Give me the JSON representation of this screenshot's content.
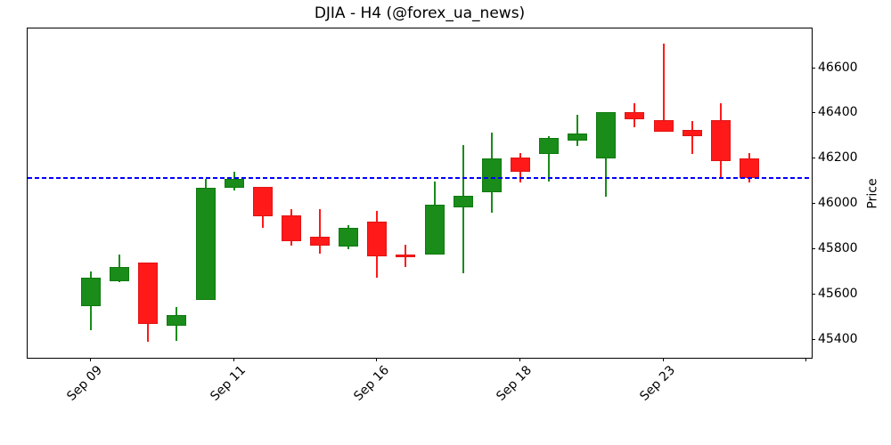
{
  "chart_data": {
    "type": "candlestick",
    "title": "DJIA - H4 (@forex_ua_news)",
    "ylabel": "Price",
    "ylim": [
      45320,
      46775
    ],
    "y_ticks": [
      45400,
      45600,
      45800,
      46000,
      46200,
      46400,
      46600
    ],
    "x_ticks": [
      {
        "pos": 0,
        "label": "Sep 09"
      },
      {
        "pos": 5,
        "label": "Sep 11"
      },
      {
        "pos": 10,
        "label": "Sep 16"
      },
      {
        "pos": 15,
        "label": "Sep 18"
      },
      {
        "pos": 20,
        "label": "Sep 23"
      },
      {
        "pos": 25,
        "label": ""
      }
    ],
    "grid": false,
    "legend": "none",
    "hline": {
      "value": 46115,
      "color": "#0000ff",
      "style": "dashed"
    },
    "colors": {
      "up": "#198c19",
      "up_edge": "#0f7a0f",
      "down": "#ff1919",
      "down_edge": "#e01414",
      "axis": "#000000"
    },
    "candles": [
      {
        "open": 45550,
        "high": 45700,
        "low": 45440,
        "close": 45675
      },
      {
        "open": 45660,
        "high": 45775,
        "low": 45655,
        "close": 45720
      },
      {
        "open": 45740,
        "high": 45740,
        "low": 45390,
        "close": 45470
      },
      {
        "open": 45460,
        "high": 45545,
        "low": 45395,
        "close": 45510
      },
      {
        "open": 45575,
        "high": 46110,
        "low": 45575,
        "close": 46070
      },
      {
        "open": 46070,
        "high": 46140,
        "low": 46060,
        "close": 46110
      },
      {
        "open": 46075,
        "high": 46075,
        "low": 45895,
        "close": 45945
      },
      {
        "open": 45950,
        "high": 45975,
        "low": 45815,
        "close": 45835
      },
      {
        "open": 45855,
        "high": 45975,
        "low": 45780,
        "close": 45815
      },
      {
        "open": 45810,
        "high": 45905,
        "low": 45800,
        "close": 45895
      },
      {
        "open": 45920,
        "high": 45970,
        "low": 45675,
        "close": 45770
      },
      {
        "open": 45775,
        "high": 45820,
        "low": 45720,
        "close": 45765
      },
      {
        "open": 45775,
        "high": 46100,
        "low": 45775,
        "close": 45995
      },
      {
        "open": 45985,
        "high": 46260,
        "low": 45695,
        "close": 46035
      },
      {
        "open": 46050,
        "high": 46315,
        "low": 45960,
        "close": 46200
      },
      {
        "open": 46205,
        "high": 46225,
        "low": 46095,
        "close": 46140
      },
      {
        "open": 46220,
        "high": 46300,
        "low": 46100,
        "close": 46290
      },
      {
        "open": 46280,
        "high": 46395,
        "low": 46255,
        "close": 46310
      },
      {
        "open": 46200,
        "high": 46405,
        "low": 46030,
        "close": 46405
      },
      {
        "open": 46405,
        "high": 46445,
        "low": 46340,
        "close": 46375
      },
      {
        "open": 46370,
        "high": 46710,
        "low": 46320,
        "close": 46320
      },
      {
        "open": 46325,
        "high": 46365,
        "low": 46220,
        "close": 46300
      },
      {
        "open": 46370,
        "high": 46445,
        "low": 46115,
        "close": 46190
      },
      {
        "open": 46200,
        "high": 46225,
        "low": 46095,
        "close": 46115
      }
    ]
  }
}
